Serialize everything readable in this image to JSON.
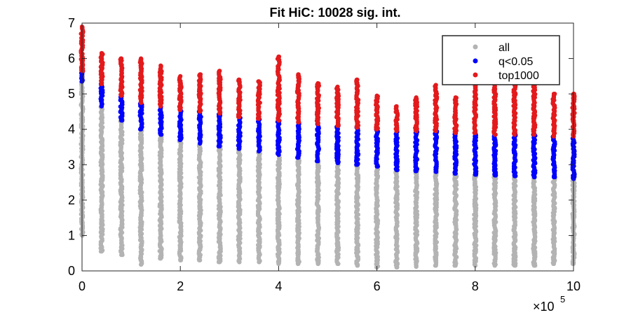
{
  "chart_data": {
    "type": "scatter",
    "title": "Fit HiC: 10028 sig. int.",
    "xlabel": "",
    "ylabel": "",
    "xlim": [
      0,
      1000000
    ],
    "ylim": [
      0,
      7
    ],
    "x_ticks": [
      0,
      200000,
      400000,
      600000,
      800000,
      1000000
    ],
    "x_tick_labels": [
      "0",
      "2",
      "4",
      "6",
      "8",
      "10"
    ],
    "x_exponent_label": {
      "base": "×10",
      "exp": "5"
    },
    "y_ticks": [
      0,
      1,
      2,
      3,
      4,
      5,
      6,
      7
    ],
    "y_tick_labels": [
      "0",
      "1",
      "2",
      "3",
      "4",
      "5",
      "6",
      "7"
    ],
    "grid": false,
    "legend_position": "top-right",
    "x_positions": [
      0,
      40000,
      80000,
      120000,
      160000,
      200000,
      240000,
      280000,
      320000,
      360000,
      400000,
      440000,
      480000,
      520000,
      560000,
      600000,
      640000,
      680000,
      720000,
      760000,
      800000,
      840000,
      880000,
      920000,
      960000,
      1000000
    ],
    "series": [
      {
        "name": "all",
        "color": "#b3b3b3",
        "ranges": [
          [
            1.0,
            5.6
          ],
          [
            0.55,
            4.65
          ],
          [
            0.45,
            4.25
          ],
          [
            0.18,
            4.0
          ],
          [
            0.35,
            3.85
          ],
          [
            0.3,
            3.7
          ],
          [
            0.3,
            3.6
          ],
          [
            0.25,
            3.52
          ],
          [
            0.25,
            3.45
          ],
          [
            0.25,
            3.38
          ],
          [
            0.2,
            3.28
          ],
          [
            0.2,
            3.2
          ],
          [
            0.2,
            3.1
          ],
          [
            0.2,
            3.05
          ],
          [
            0.15,
            3.0
          ],
          [
            0.1,
            2.95
          ],
          [
            0.1,
            2.85
          ],
          [
            0.12,
            2.82
          ],
          [
            0.15,
            2.8
          ],
          [
            0.15,
            2.75
          ],
          [
            0.15,
            2.72
          ],
          [
            0.15,
            2.7
          ],
          [
            0.15,
            2.68
          ],
          [
            0.15,
            2.65
          ],
          [
            0.2,
            2.65
          ],
          [
            0.2,
            2.6
          ]
        ]
      },
      {
        "name": "q<0.05",
        "color": "#0000ff",
        "ranges": [
          [
            5.35,
            5.65
          ],
          [
            4.65,
            5.28
          ],
          [
            4.25,
            4.95
          ],
          [
            4.0,
            4.75
          ],
          [
            3.85,
            4.65
          ],
          [
            3.7,
            4.55
          ],
          [
            3.6,
            4.5
          ],
          [
            3.52,
            4.45
          ],
          [
            3.45,
            4.35
          ],
          [
            3.38,
            4.3
          ],
          [
            3.28,
            4.25
          ],
          [
            3.2,
            4.2
          ],
          [
            3.1,
            4.15
          ],
          [
            3.05,
            4.1
          ],
          [
            3.0,
            4.05
          ],
          [
            2.95,
            4.0
          ],
          [
            2.85,
            3.95
          ],
          [
            2.82,
            3.95
          ],
          [
            2.8,
            3.95
          ],
          [
            2.75,
            3.9
          ],
          [
            2.72,
            3.9
          ],
          [
            2.7,
            3.85
          ],
          [
            2.68,
            3.85
          ],
          [
            2.65,
            3.85
          ],
          [
            2.65,
            3.8
          ],
          [
            2.6,
            3.8
          ]
        ]
      },
      {
        "name": "top1000",
        "color": "#e31a1c",
        "ranges": [
          [
            5.65,
            6.9
          ],
          [
            5.28,
            6.15
          ],
          [
            4.95,
            6.0
          ],
          [
            4.75,
            6.0
          ],
          [
            4.65,
            5.8
          ],
          [
            4.55,
            5.5
          ],
          [
            4.5,
            5.55
          ],
          [
            4.45,
            5.65
          ],
          [
            4.35,
            5.4
          ],
          [
            4.3,
            5.35
          ],
          [
            4.25,
            6.05
          ],
          [
            4.2,
            5.55
          ],
          [
            4.15,
            5.3
          ],
          [
            4.1,
            5.2
          ],
          [
            4.05,
            5.4
          ],
          [
            4.0,
            4.95
          ],
          [
            3.95,
            4.65
          ],
          [
            3.95,
            4.9
          ],
          [
            3.95,
            5.25
          ],
          [
            3.9,
            4.9
          ],
          [
            3.9,
            5.3
          ],
          [
            3.85,
            5.3
          ],
          [
            3.85,
            5.25
          ],
          [
            3.85,
            5.3
          ],
          [
            3.8,
            5.0
          ],
          [
            3.8,
            5.0
          ]
        ]
      }
    ]
  }
}
